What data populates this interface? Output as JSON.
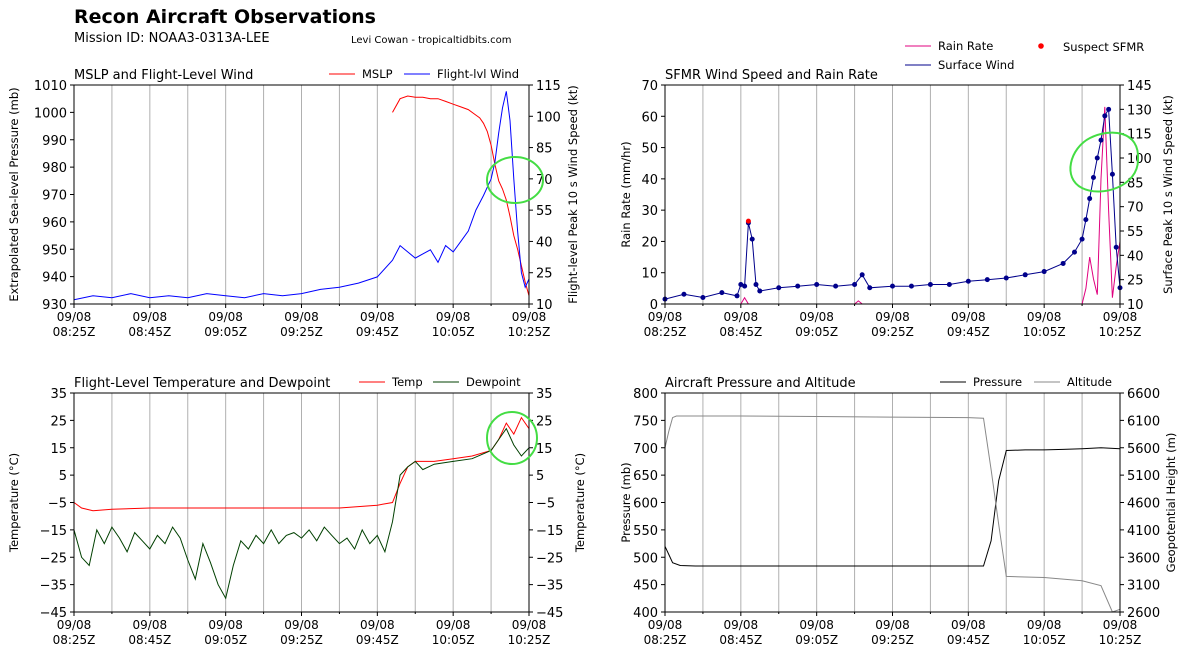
{
  "header": {
    "title": "Recon Aircraft Observations",
    "mission": "Mission ID: NOAA3-0313A-LEE",
    "credit": "Levi Cowan - tropicaltidbits.com"
  },
  "colors": {
    "mslp": "#ff0000",
    "flight_wind": "#0000ff",
    "rain": "#e0007f",
    "surface_wind": "#00008b",
    "suspect": "#ff0000",
    "temp": "#ff0000",
    "dewpoint": "#004000",
    "pressure": "#000000",
    "altitude": "#888888",
    "annotation": "#44dd44"
  },
  "x_ticks": [
    "09/08\n08:25Z",
    "09/08\n08:45Z",
    "09/08\n09:05Z",
    "09/08\n09:25Z",
    "09/08\n09:45Z",
    "09/08\n10:05Z",
    "09/08\n10:25Z"
  ],
  "top_legend": {
    "rain": "Rain Rate",
    "surface": "Surface Wind",
    "suspect": "Suspect SFMR"
  },
  "chart_data": [
    {
      "type": "line",
      "title": "MSLP and Flight-Level Wind",
      "ylabel": "Extrapolated Sea-level Pressure (mb)",
      "y2label": "Flight-level Peak 10 s Wind Speed (kt)",
      "ylim": [
        930,
        1010
      ],
      "y2lim": [
        10,
        115
      ],
      "yticks": [
        930,
        940,
        950,
        960,
        970,
        980,
        990,
        1000,
        1010
      ],
      "y2ticks": [
        10,
        25,
        40,
        55,
        70,
        85,
        100,
        115
      ],
      "legend": [
        "MSLP",
        "Flight-lvl Wind"
      ],
      "series": [
        {
          "name": "MSLP",
          "axis": "left",
          "x": [
            84,
            86,
            88,
            90,
            92,
            94,
            96,
            98,
            100,
            102,
            104,
            106,
            107,
            108,
            109,
            110,
            111,
            112,
            113,
            114,
            115,
            116,
            117,
            118,
            119,
            120
          ],
          "values": [
            1000,
            1005,
            1006,
            1005.5,
            1005.5,
            1005,
            1005,
            1004,
            1003,
            1002,
            1001,
            999,
            998,
            996,
            993,
            988,
            981,
            975,
            972,
            968,
            962,
            955,
            950,
            944,
            938,
            933
          ]
        },
        {
          "name": "Flight-lvl Wind",
          "axis": "right",
          "x": [
            0,
            5,
            10,
            15,
            20,
            25,
            30,
            35,
            40,
            45,
            50,
            55,
            60,
            65,
            70,
            75,
            80,
            84,
            86,
            88,
            90,
            92,
            94,
            96,
            98,
            100,
            102,
            104,
            106,
            108,
            110,
            111,
            112,
            113,
            114,
            115,
            116,
            117,
            118,
            119,
            120
          ],
          "values": [
            12,
            14,
            13,
            15,
            13,
            14,
            13,
            15,
            14,
            13,
            15,
            14,
            15,
            17,
            18,
            20,
            23,
            31,
            38,
            35,
            32,
            34,
            36,
            30,
            38,
            35,
            40,
            45,
            55,
            62,
            70,
            78,
            92,
            104,
            112,
            98,
            70,
            45,
            25,
            18,
            22
          ]
        }
      ]
    },
    {
      "type": "line",
      "title": "SFMR Wind Speed and Rain Rate",
      "ylabel": "Rain Rate (mm/hr)",
      "y2label": "Surface Peak 10 s Wind Speed (kt)",
      "ylim": [
        0,
        70
      ],
      "y2lim": [
        10,
        145
      ],
      "yticks": [
        0,
        10,
        20,
        30,
        40,
        50,
        60,
        70
      ],
      "y2ticks": [
        10,
        25,
        40,
        55,
        70,
        85,
        100,
        115,
        130,
        145
      ],
      "series": [
        {
          "name": "Rain Rate",
          "axis": "left",
          "x": [
            0,
            20,
            21,
            22,
            50,
            51,
            52,
            100,
            110,
            111,
            112,
            113,
            114,
            115,
            116,
            117,
            118,
            119,
            120
          ],
          "values": [
            0,
            0,
            2,
            0,
            0,
            1,
            0,
            0,
            0,
            5,
            15,
            8,
            3,
            40,
            63,
            30,
            2,
            12,
            20
          ]
        },
        {
          "name": "Surface Wind",
          "axis": "right",
          "x": [
            0,
            5,
            10,
            15,
            19,
            20,
            21,
            22,
            23,
            24,
            25,
            30,
            35,
            40,
            45,
            50,
            52,
            54,
            60,
            65,
            70,
            75,
            80,
            85,
            90,
            95,
            100,
            105,
            108,
            110,
            111,
            112,
            113,
            114,
            115,
            116,
            117,
            118,
            119,
            120
          ],
          "values": [
            13,
            16,
            14,
            17,
            15,
            22,
            21,
            60,
            50,
            22,
            18,
            20,
            21,
            22,
            21,
            22,
            28,
            20,
            21,
            21,
            22,
            22,
            24,
            25,
            26,
            28,
            30,
            35,
            42,
            50,
            62,
            75,
            88,
            100,
            111,
            126,
            130,
            90,
            45,
            20
          ]
        },
        {
          "name": "Suspect SFMR",
          "axis": "left",
          "x": [
            22
          ],
          "values": [
            26.5
          ]
        }
      ]
    },
    {
      "type": "line",
      "title": "Flight-Level Temperature and Dewpoint",
      "ylabel": "Temperature ($^\\circ C$)",
      "y2label": "Temperature ($^\\circ C$)",
      "ylim": [
        -45,
        35
      ],
      "yticks": [
        35,
        25,
        15,
        5,
        -5,
        -15,
        -25,
        -35,
        -45
      ],
      "legend": [
        "Temp",
        "Dewpoint"
      ],
      "series": [
        {
          "name": "Temp",
          "x": [
            0,
            2,
            5,
            10,
            20,
            30,
            40,
            50,
            60,
            70,
            80,
            84,
            86,
            88,
            90,
            92,
            95,
            100,
            105,
            110,
            112,
            114,
            116,
            118,
            120
          ],
          "values": [
            -5,
            -7,
            -8,
            -7.5,
            -7,
            -7,
            -7,
            -7,
            -7,
            -7,
            -6,
            -5,
            2,
            8,
            10,
            10,
            10,
            11,
            12,
            14,
            18,
            24,
            20,
            26,
            22
          ]
        },
        {
          "name": "Dewpoint",
          "x": [
            0,
            2,
            4,
            6,
            8,
            10,
            12,
            14,
            16,
            18,
            20,
            22,
            24,
            26,
            28,
            30,
            32,
            34,
            36,
            38,
            40,
            42,
            44,
            46,
            48,
            50,
            52,
            54,
            56,
            58,
            60,
            62,
            64,
            66,
            68,
            70,
            72,
            74,
            76,
            78,
            80,
            82,
            84,
            86,
            88,
            90,
            92,
            95,
            100,
            105,
            110,
            112,
            114,
            116,
            118,
            120
          ],
          "values": [
            -15,
            -25,
            -28,
            -15,
            -20,
            -14,
            -18,
            -23,
            -16,
            -19,
            -22,
            -17,
            -20,
            -14,
            -18,
            -26,
            -33,
            -20,
            -27,
            -35,
            -40,
            -28,
            -19,
            -22,
            -17,
            -20,
            -15,
            -20,
            -17,
            -16,
            -18,
            -15,
            -19,
            -14,
            -17,
            -20,
            -18,
            -22,
            -15,
            -20,
            -17,
            -23,
            -12,
            5,
            8,
            10,
            7,
            9,
            10,
            11,
            14,
            18,
            22,
            16,
            12,
            15
          ]
        }
      ]
    },
    {
      "type": "line",
      "title": "Aircraft Pressure and Altitude",
      "ylabel": "Pressure (mb)",
      "y2label": "Geopotential Height (m)",
      "ylim": [
        400,
        800
      ],
      "y2lim": [
        2600,
        6600
      ],
      "yticks": [
        400,
        450,
        500,
        550,
        600,
        650,
        700,
        750,
        800
      ],
      "y2ticks": [
        2600,
        3100,
        3600,
        4100,
        4600,
        5100,
        5600,
        6100,
        6600
      ],
      "legend": [
        "Pressure",
        "Altitude"
      ],
      "series": [
        {
          "name": "Pressure",
          "axis": "left",
          "x": [
            0,
            1,
            2,
            4,
            8,
            20,
            40,
            60,
            80,
            84,
            86,
            88,
            90,
            95,
            100,
            105,
            110,
            115,
            120
          ],
          "values": [
            520,
            505,
            490,
            485,
            484,
            484,
            484,
            484,
            484,
            484,
            530,
            640,
            695,
            696,
            696,
            697,
            698,
            700,
            698
          ]
        },
        {
          "name": "Altitude",
          "axis": "right",
          "x": [
            0,
            1,
            2,
            3,
            5,
            20,
            40,
            60,
            80,
            84,
            86,
            88,
            90,
            95,
            100,
            105,
            110,
            115,
            118,
            120
          ],
          "values": [
            5600,
            5900,
            6150,
            6180,
            6180,
            6180,
            6170,
            6160,
            6150,
            6140,
            5200,
            4200,
            3250,
            3240,
            3230,
            3200,
            3170,
            3080,
            2600,
            2650
          ]
        }
      ]
    }
  ]
}
